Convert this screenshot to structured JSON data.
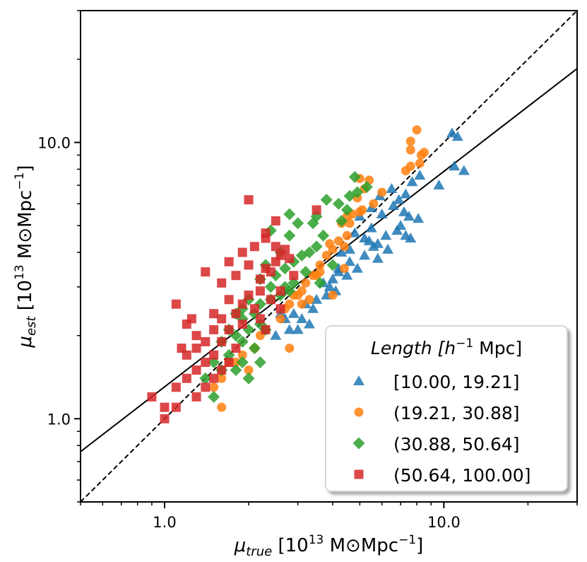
{
  "chart_data": {
    "type": "scatter",
    "xscale": "log",
    "yscale": "log",
    "xlim": [
      0.5,
      30
    ],
    "ylim": [
      0.5,
      30
    ],
    "xlabel": {
      "symbol": "μ",
      "sub": "true",
      "pre": " [10",
      "sup": "13",
      "post": " M⊙Mpc",
      "sup2": "−1",
      "end": "]"
    },
    "ylabel": {
      "symbol": "μ",
      "sub": "est",
      "pre": " [10",
      "sup": "13",
      "post": " M⊙Mpc",
      "sup2": "−1",
      "end": "]"
    },
    "xticks": [
      {
        "value": 1.0,
        "label": "1.0"
      },
      {
        "value": 10.0,
        "label": "10.0"
      }
    ],
    "yticks": [
      {
        "value": 1.0,
        "label": "1.0"
      },
      {
        "value": 10.0,
        "label": "10.0"
      }
    ],
    "legend": {
      "title": {
        "text": "Length [",
        "sup_base": "h",
        "sup": "−1",
        "tail": " Mpc]"
      },
      "position": "lower-right"
    },
    "lines": [
      {
        "name": "one-to-one",
        "style": "dashed",
        "color": "#000000",
        "x": [
          0.5,
          30
        ],
        "y": [
          0.5,
          30
        ]
      },
      {
        "name": "fit",
        "style": "solid",
        "color": "#000000",
        "x": [
          0.5,
          30
        ],
        "y": [
          0.76,
          18.5
        ]
      }
    ],
    "series": [
      {
        "name": "[10.00, 19.21]",
        "label": "[10.00, 19.21]",
        "marker": "triangle",
        "color": "#1f77b4",
        "points": [
          [
            11.2,
            10.5
          ],
          [
            10.7,
            10.8
          ],
          [
            11.8,
            7.9
          ],
          [
            10.9,
            8.2
          ],
          [
            9.6,
            7.0
          ],
          [
            8.2,
            7.6
          ],
          [
            7.7,
            7.2
          ],
          [
            7.3,
            6.5
          ],
          [
            6.9,
            6.2
          ],
          [
            6.6,
            5.9
          ],
          [
            7.5,
            5.4
          ],
          [
            8.1,
            5.3
          ],
          [
            7.0,
            5.0
          ],
          [
            6.2,
            4.6
          ],
          [
            7.3,
            4.6
          ],
          [
            5.8,
            4.3
          ],
          [
            6.3,
            4.1
          ],
          [
            5.5,
            4.9
          ],
          [
            5.2,
            3.9
          ],
          [
            5.8,
            3.8
          ],
          [
            6.0,
            5.5
          ],
          [
            5.5,
            5.8
          ],
          [
            5.0,
            5.4
          ],
          [
            5.2,
            4.5
          ],
          [
            5.6,
            4.2
          ],
          [
            4.8,
            4.7
          ],
          [
            4.6,
            4.1
          ],
          [
            4.3,
            4.0
          ],
          [
            4.6,
            3.7
          ],
          [
            4.2,
            3.5
          ],
          [
            4.5,
            3.3
          ],
          [
            4.0,
            3.2
          ],
          [
            3.9,
            3.0
          ],
          [
            3.7,
            3.1
          ],
          [
            3.8,
            2.8
          ],
          [
            3.5,
            2.7
          ],
          [
            4.2,
            3.4
          ],
          [
            3.4,
            2.5
          ],
          [
            3.2,
            2.6
          ],
          [
            3.1,
            2.3
          ],
          [
            2.9,
            2.4
          ],
          [
            2.7,
            2.3
          ],
          [
            2.5,
            2.0
          ],
          [
            2.8,
            2.1
          ],
          [
            3.0,
            2.1
          ],
          [
            5.9,
            6.4
          ],
          [
            6.5,
            6.8
          ],
          [
            6.8,
            4.8
          ],
          [
            7.6,
            4.5
          ],
          [
            4.9,
            3.5
          ],
          [
            4.1,
            2.9
          ],
          [
            3.3,
            2.2
          ],
          [
            2.6,
            2.4
          ],
          [
            7.2,
            5.6
          ],
          [
            5.4,
            4.4
          ]
        ]
      },
      {
        "name": "(19.21, 30.88]",
        "label": "(19.21, 30.88]",
        "marker": "circle",
        "color": "#ff7f0e",
        "points": [
          [
            8.0,
            11.1
          ],
          [
            8.3,
            9.0
          ],
          [
            8.5,
            9.2
          ],
          [
            7.6,
            10.1
          ],
          [
            7.6,
            9.4
          ],
          [
            7.6,
            8.2
          ],
          [
            8.2,
            8.4
          ],
          [
            7.3,
            7.9
          ],
          [
            5.0,
            7.4
          ],
          [
            5.4,
            7.3
          ],
          [
            5.2,
            6.8
          ],
          [
            4.9,
            6.3
          ],
          [
            5.1,
            5.7
          ],
          [
            5.0,
            5.6
          ],
          [
            4.7,
            5.5
          ],
          [
            4.5,
            5.4
          ],
          [
            4.6,
            5.1
          ],
          [
            4.3,
            5.1
          ],
          [
            4.5,
            4.6
          ],
          [
            4.2,
            4.4
          ],
          [
            4.4,
            4.2
          ],
          [
            3.9,
            4.3
          ],
          [
            4.0,
            4.1
          ],
          [
            3.8,
            3.9
          ],
          [
            3.6,
            3.6
          ],
          [
            3.6,
            3.4
          ],
          [
            3.5,
            3.3
          ],
          [
            3.4,
            3.3
          ],
          [
            3.2,
            3.1
          ],
          [
            3.1,
            2.9
          ],
          [
            3.0,
            2.8
          ],
          [
            2.9,
            2.8
          ],
          [
            2.8,
            2.6
          ],
          [
            2.7,
            2.5
          ],
          [
            3.3,
            2.7
          ],
          [
            2.6,
            2.3
          ],
          [
            2.3,
            2.1
          ],
          [
            2.2,
            2.0
          ],
          [
            2.1,
            1.8
          ],
          [
            1.9,
            1.7
          ],
          [
            1.8,
            1.6
          ],
          [
            1.6,
            1.4
          ],
          [
            1.7,
            1.6
          ],
          [
            2.0,
            1.5
          ],
          [
            2.8,
            1.8
          ],
          [
            1.6,
            1.1
          ],
          [
            1.5,
            1.3
          ],
          [
            4.0,
            2.8
          ],
          [
            3.1,
            2.6
          ],
          [
            4.4,
            3.5
          ],
          [
            5.6,
            6.0
          ],
          [
            6.0,
            6.6
          ]
        ]
      },
      {
        "name": "(30.88, 50.64]",
        "label": "(30.88, 50.64]",
        "marker": "diamond",
        "color": "#2ca02c",
        "points": [
          [
            4.8,
            7.5
          ],
          [
            5.3,
            6.9
          ],
          [
            4.9,
            6.6
          ],
          [
            4.6,
            6.4
          ],
          [
            3.8,
            6.2
          ],
          [
            4.2,
            6.0
          ],
          [
            4.5,
            5.7
          ],
          [
            4.3,
            5.2
          ],
          [
            3.5,
            5.4
          ],
          [
            3.4,
            5.1
          ],
          [
            2.8,
            5.5
          ],
          [
            3.0,
            5.1
          ],
          [
            2.8,
            4.6
          ],
          [
            2.4,
            4.8
          ],
          [
            3.7,
            4.6
          ],
          [
            3.5,
            4.2
          ],
          [
            3.3,
            4.0
          ],
          [
            2.6,
            4.0
          ],
          [
            3.1,
            3.9
          ],
          [
            2.9,
            3.7
          ],
          [
            2.7,
            3.5
          ],
          [
            2.3,
            3.6
          ],
          [
            2.5,
            3.3
          ],
          [
            3.2,
            3.4
          ],
          [
            2.9,
            3.1
          ],
          [
            2.7,
            3.0
          ],
          [
            2.4,
            3.0
          ],
          [
            2.2,
            3.2
          ],
          [
            2.6,
            2.8
          ],
          [
            2.4,
            2.7
          ],
          [
            2.2,
            2.6
          ],
          [
            2.0,
            2.7
          ],
          [
            2.1,
            2.4
          ],
          [
            1.9,
            2.5
          ],
          [
            1.9,
            2.3
          ],
          [
            1.8,
            2.4
          ],
          [
            2.2,
            2.2
          ],
          [
            2.3,
            2.1
          ],
          [
            2.0,
            2.1
          ],
          [
            1.7,
            2.1
          ],
          [
            1.8,
            2.0
          ],
          [
            1.9,
            1.9
          ],
          [
            1.6,
            1.9
          ],
          [
            1.7,
            1.7
          ],
          [
            2.1,
            1.8
          ],
          [
            2.2,
            1.6
          ],
          [
            1.9,
            1.6
          ],
          [
            1.8,
            1.5
          ],
          [
            1.6,
            1.5
          ],
          [
            1.5,
            1.6
          ],
          [
            1.4,
            1.4
          ],
          [
            2.0,
            1.4
          ],
          [
            1.5,
            1.2
          ],
          [
            4.0,
            3.6
          ],
          [
            3.6,
            3.1
          ],
          [
            2.8,
            2.9
          ]
        ]
      },
      {
        "name": "(50.64, 100.00]",
        "label": "(50.64, 100.00]",
        "marker": "square",
        "color": "#d62728",
        "points": [
          [
            2.0,
            6.2
          ],
          [
            3.5,
            5.7
          ],
          [
            2.5,
            5.2
          ],
          [
            2.3,
            4.7
          ],
          [
            2.3,
            4.5
          ],
          [
            2.5,
            4.2
          ],
          [
            2.6,
            3.9
          ],
          [
            2.1,
            4.2
          ],
          [
            1.9,
            4.0
          ],
          [
            1.7,
            3.7
          ],
          [
            2.3,
            3.5
          ],
          [
            2.0,
            3.6
          ],
          [
            2.4,
            3.4
          ],
          [
            2.2,
            3.2
          ],
          [
            1.8,
            3.3
          ],
          [
            1.6,
            3.1
          ],
          [
            1.4,
            3.4
          ],
          [
            2.5,
            3.7
          ],
          [
            2.7,
            4.1
          ],
          [
            2.2,
            2.9
          ],
          [
            2.0,
            2.8
          ],
          [
            1.7,
            2.7
          ],
          [
            1.9,
            2.6
          ],
          [
            2.4,
            2.7
          ],
          [
            2.1,
            2.5
          ],
          [
            2.6,
            2.5
          ],
          [
            1.8,
            2.4
          ],
          [
            1.5,
            2.4
          ],
          [
            1.6,
            2.3
          ],
          [
            1.9,
            2.2
          ],
          [
            2.2,
            2.3
          ],
          [
            1.7,
            2.1
          ],
          [
            1.5,
            2.1
          ],
          [
            2.3,
            2.1
          ],
          [
            1.4,
            1.9
          ],
          [
            1.6,
            1.9
          ],
          [
            1.8,
            1.8
          ],
          [
            1.3,
            1.8
          ],
          [
            1.5,
            1.7
          ],
          [
            1.7,
            1.6
          ],
          [
            1.2,
            1.7
          ],
          [
            1.4,
            1.6
          ],
          [
            1.6,
            1.5
          ],
          [
            1.3,
            1.5
          ],
          [
            1.5,
            1.4
          ],
          [
            1.2,
            1.4
          ],
          [
            1.4,
            1.3
          ],
          [
            1.1,
            1.3
          ],
          [
            1.3,
            1.2
          ],
          [
            1.1,
            1.1
          ],
          [
            1.0,
            1.1
          ],
          [
            0.9,
            1.2
          ],
          [
            1.0,
            1.0
          ],
          [
            1.2,
            2.2
          ],
          [
            1.1,
            2.6
          ],
          [
            1.3,
            2.0
          ],
          [
            1.15,
            1.8
          ],
          [
            1.25,
            2.3
          ],
          [
            2.8,
            3.8
          ],
          [
            2.9,
            3.3
          ],
          [
            2.6,
            2.9
          ]
        ]
      }
    ]
  }
}
